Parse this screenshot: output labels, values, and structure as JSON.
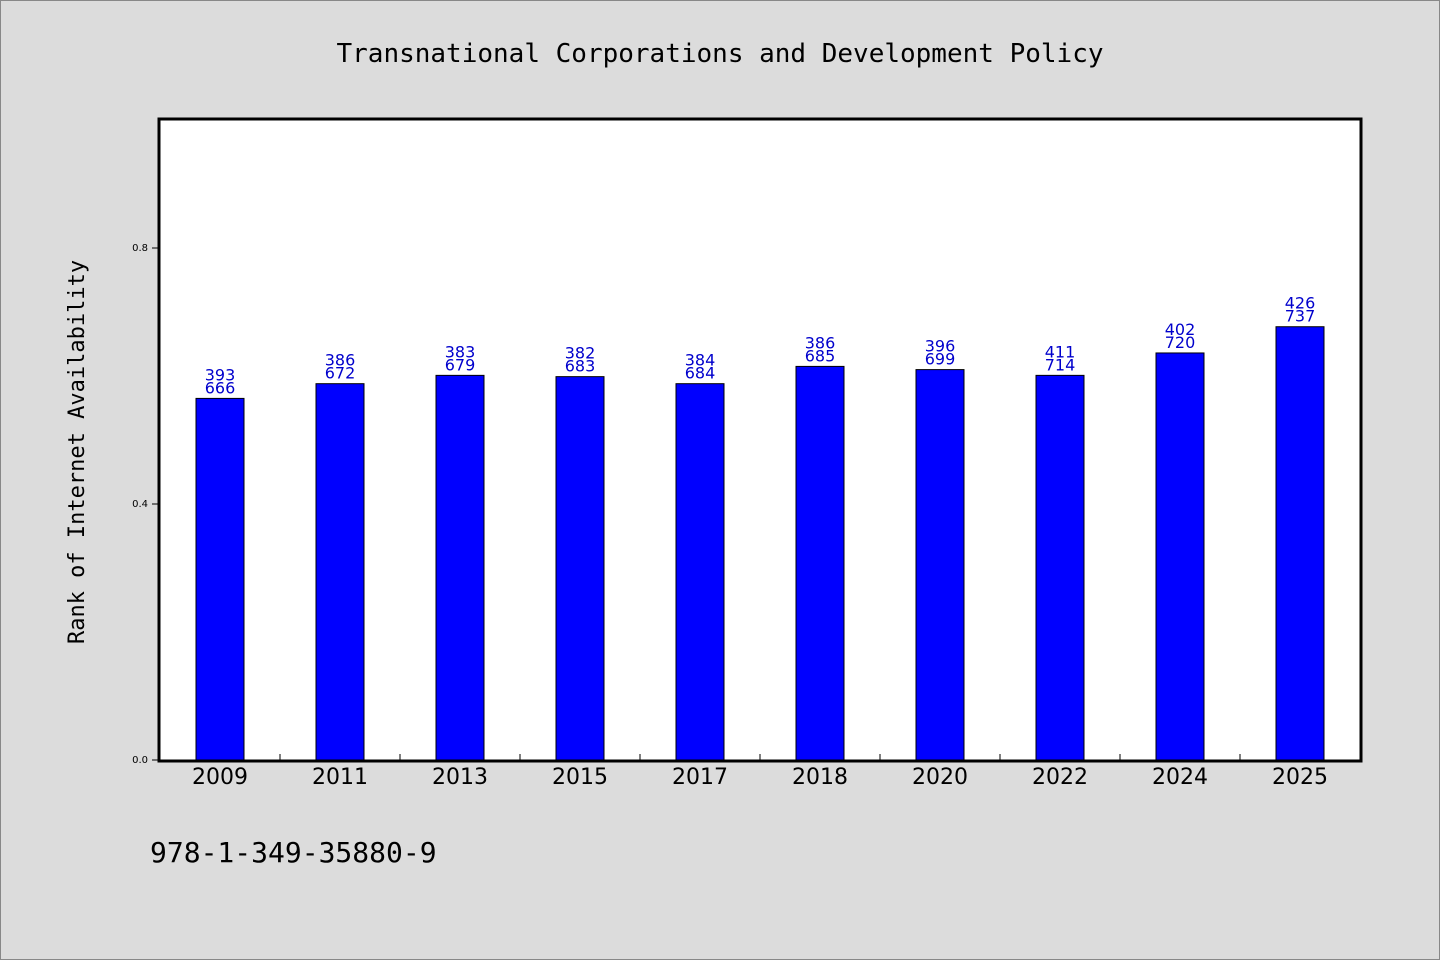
{
  "footer_text": "978-1-349-35880-9",
  "colors": {
    "background": "#dcdcdc",
    "plot_background": "#ffffff",
    "bar_fill": "#0000ff",
    "label_color": "#0000cc"
  },
  "chart_data": {
    "type": "bar",
    "title": "Transnational Corporations and Development Policy",
    "xlabel": "",
    "ylabel": "Rank of Internet Availability",
    "ylim": [
      0,
      1.0
    ],
    "yticks": [
      {
        "value": 0.0,
        "label": "0.0"
      },
      {
        "value": 0.4,
        "label": "0.4"
      },
      {
        "value": 0.8,
        "label": "0.8"
      }
    ],
    "grid": false,
    "legend": "none",
    "categories": [
      "2009",
      "2011",
      "2013",
      "2015",
      "2017",
      "2018",
      "2020",
      "2022",
      "2024",
      "2025"
    ],
    "values": [
      0.565,
      0.588,
      0.601,
      0.599,
      0.588,
      0.615,
      0.61,
      0.601,
      0.636,
      0.677
    ],
    "data_labels_top": [
      "393",
      "386",
      "383",
      "382",
      "384",
      "386",
      "396",
      "411",
      "402",
      "426"
    ],
    "data_labels_bottom": [
      "666",
      "672",
      "679",
      "683",
      "684",
      "685",
      "699",
      "714",
      "720",
      "737"
    ]
  }
}
